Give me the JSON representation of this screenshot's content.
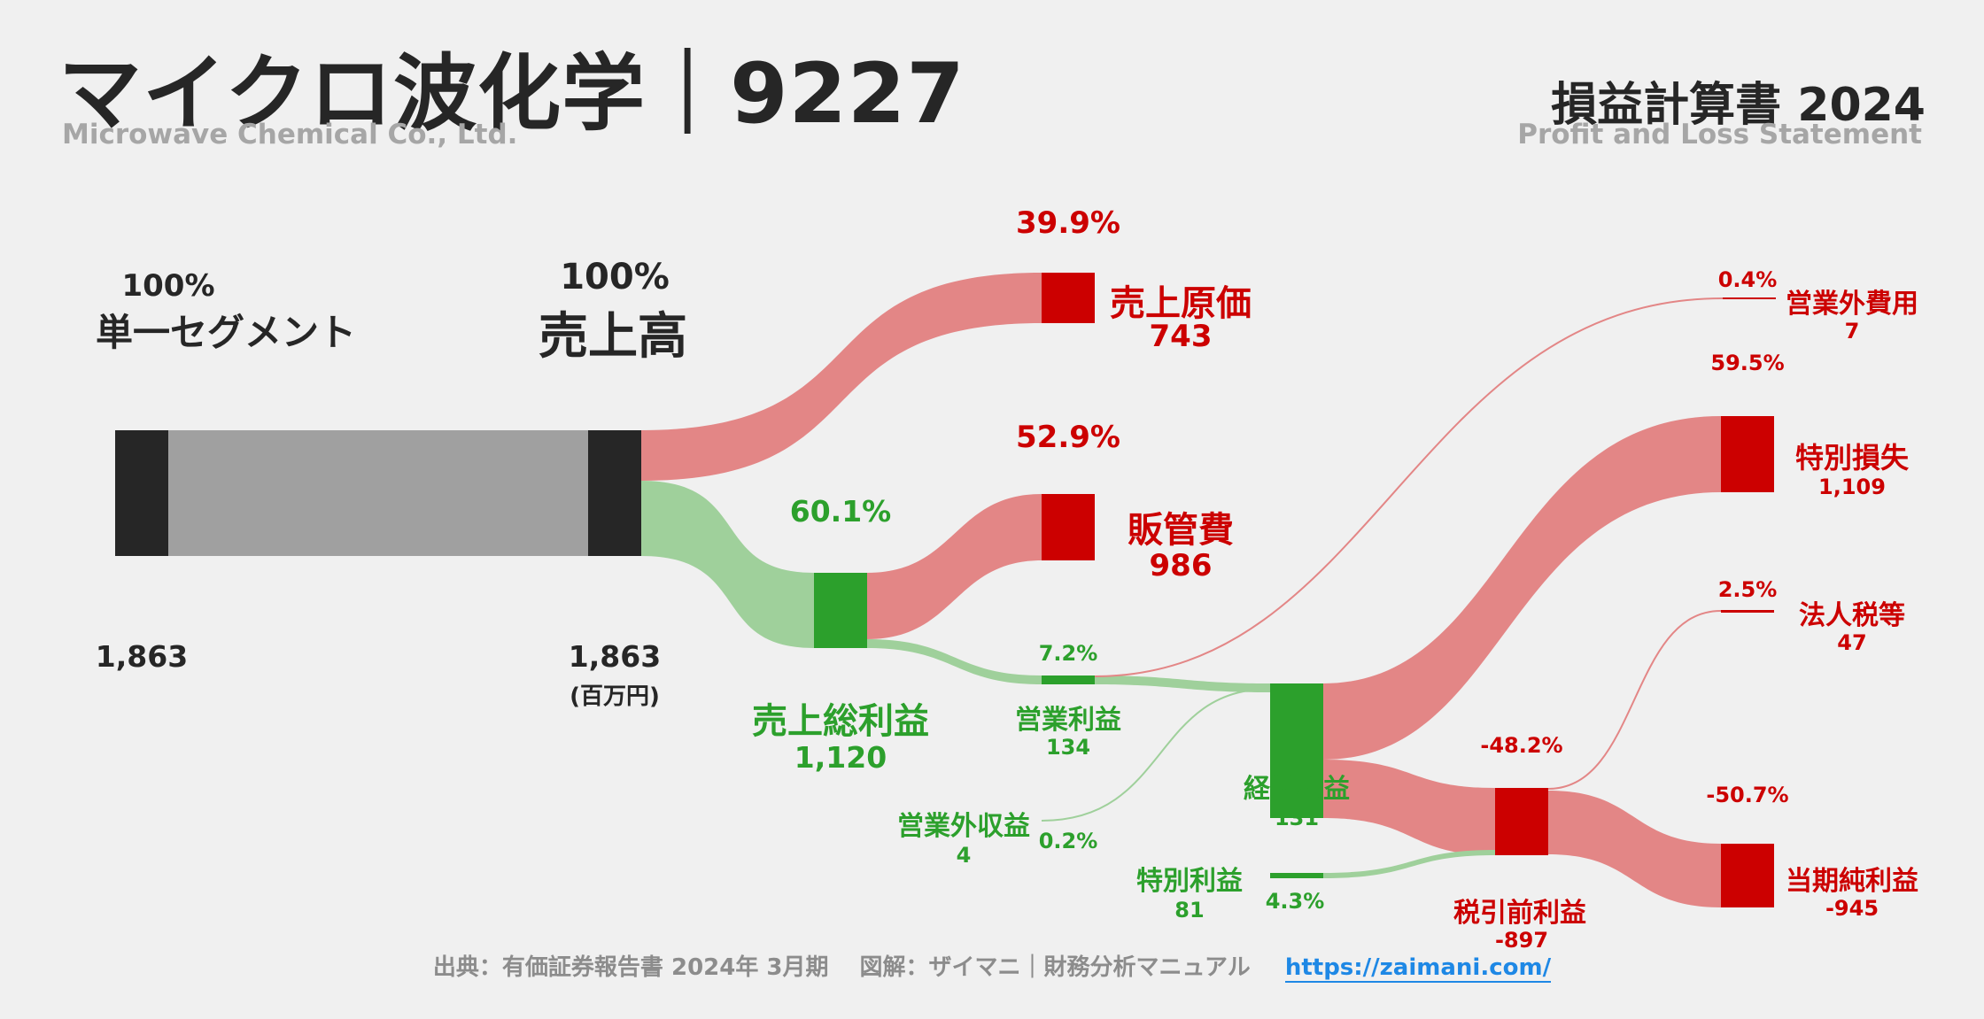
{
  "header": {
    "title": "マイクロ波化学｜9227",
    "subtitle": "Microwave Chemical Co., Ltd.",
    "report_title": "損益計算書 2024",
    "report_subtitle": "Profit and Loss Statement"
  },
  "colors": {
    "red": "#cc0000",
    "red_flow": "#e38686",
    "green": "#2ca02c",
    "green_flow": "#9fd09b",
    "dark": "#262626",
    "gray_flow": "#a0a0a0"
  },
  "nodes": {
    "segment": {
      "pct": "100%",
      "name": "単一セグメント",
      "value": "1,863"
    },
    "revenue": {
      "pct": "100%",
      "name": "売上高",
      "value": "1,863",
      "unit": "(百万円)"
    },
    "cogs": {
      "pct": "39.9%",
      "name": "売上原価",
      "value": "743"
    },
    "sga": {
      "pct": "52.9%",
      "name": "販管費",
      "value": "986"
    },
    "gross_profit": {
      "pct": "60.1%",
      "name": "売上総利益",
      "value": "1,120"
    },
    "operating_income": {
      "pct": "7.2%",
      "name": "営業利益",
      "value": "134"
    },
    "non_op_income": {
      "pct": "0.2%",
      "name": "営業外収益",
      "value": "4"
    },
    "non_op_expense": {
      "pct": "0.4%",
      "name": "営業外費用",
      "value": "7"
    },
    "ordinary_income": {
      "name": "経常利益",
      "value": "131"
    },
    "extraordinary_gain": {
      "pct": "4.3%",
      "name": "特別利益",
      "value": "81"
    },
    "extraordinary_loss": {
      "pct": "59.5%",
      "name": "特別損失",
      "value": "1,109"
    },
    "pretax_income": {
      "pct": "-48.2%",
      "name": "税引前利益",
      "value": "-897"
    },
    "income_tax": {
      "pct": "2.5%",
      "name": "法人税等",
      "value": "47"
    },
    "net_income": {
      "pct": "-50.7%",
      "name": "当期純利益",
      "value": "-945"
    }
  },
  "footer": {
    "source": "出典：有価証券報告書 2024年 3月期　 図解：ザイマニ｜財務分析マニュアル",
    "link": "https://zaimani.com/"
  }
}
